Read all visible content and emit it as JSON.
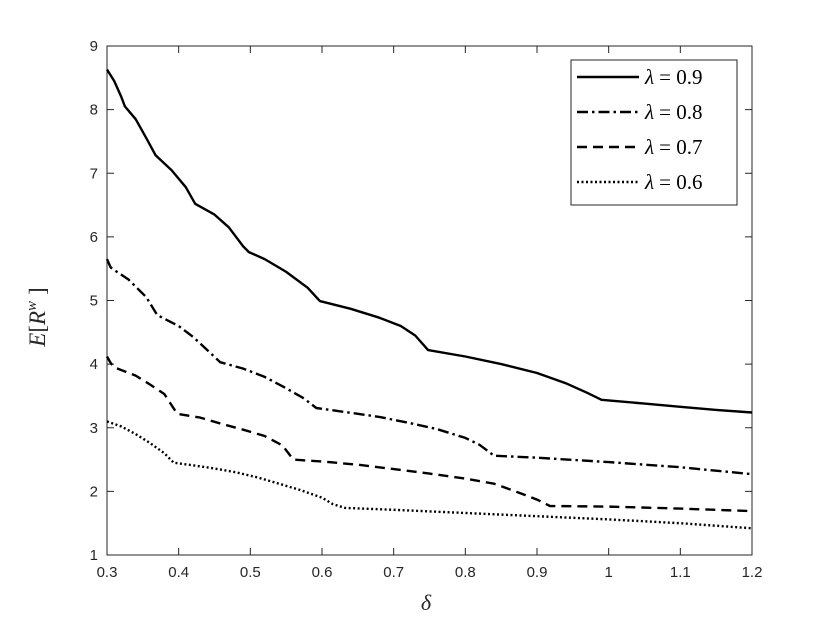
{
  "chart_data": {
    "type": "line",
    "xlabel": "δ",
    "ylabel_parts": {
      "a": "E",
      "b": "[",
      "c": "R",
      "d": "w",
      "e": "]"
    },
    "xlim": [
      0.3,
      1.2
    ],
    "ylim": [
      1,
      9
    ],
    "xticks": [
      "0.3",
      "0.4",
      "0.5",
      "0.6",
      "0.7",
      "0.8",
      "0.9",
      "1",
      "1.1",
      "1.2"
    ],
    "yticks": [
      "1",
      "2",
      "3",
      "4",
      "5",
      "6",
      "7",
      "8",
      "9"
    ],
    "grid": false,
    "legend_position": "top-right",
    "series": [
      {
        "name": "λ = 0.9",
        "legend_symbol": "λ",
        "legend_value": "= 0.9",
        "style": "solid",
        "color": "#000000",
        "x": [
          0.3,
          0.31,
          0.32,
          0.325,
          0.34,
          0.355,
          0.368,
          0.39,
          0.41,
          0.423,
          0.45,
          0.47,
          0.49,
          0.498,
          0.52,
          0.55,
          0.58,
          0.597,
          0.64,
          0.68,
          0.71,
          0.73,
          0.748,
          0.8,
          0.85,
          0.9,
          0.94,
          0.97,
          0.99,
          1.05,
          1.1,
          1.15,
          1.2
        ],
        "y": [
          8.63,
          8.45,
          8.2,
          8.05,
          7.85,
          7.55,
          7.28,
          7.05,
          6.78,
          6.52,
          6.35,
          6.15,
          5.85,
          5.76,
          5.65,
          5.45,
          5.2,
          4.99,
          4.87,
          4.73,
          4.6,
          4.45,
          4.22,
          4.12,
          4.0,
          3.86,
          3.7,
          3.55,
          3.44,
          3.38,
          3.33,
          3.28,
          3.24
        ]
      },
      {
        "name": "λ = 0.8",
        "legend_symbol": "λ",
        "legend_value": "= 0.8",
        "style": "dashdot",
        "color": "#000000",
        "x": [
          0.3,
          0.305,
          0.31,
          0.33,
          0.355,
          0.37,
          0.4,
          0.42,
          0.44,
          0.458,
          0.49,
          0.52,
          0.55,
          0.575,
          0.592,
          0.63,
          0.68,
          0.72,
          0.76,
          0.8,
          0.82,
          0.84,
          0.9,
          1.0,
          1.1,
          1.2
        ],
        "y": [
          5.65,
          5.52,
          5.48,
          5.33,
          5.05,
          4.77,
          4.6,
          4.43,
          4.22,
          4.03,
          3.93,
          3.8,
          3.62,
          3.46,
          3.31,
          3.25,
          3.17,
          3.08,
          2.98,
          2.84,
          2.73,
          2.56,
          2.53,
          2.46,
          2.38,
          2.27
        ]
      },
      {
        "name": "λ = 0.7",
        "legend_symbol": "λ",
        "legend_value": "= 0.7",
        "style": "dashed",
        "color": "#000000",
        "x": [
          0.3,
          0.305,
          0.31,
          0.34,
          0.36,
          0.38,
          0.398,
          0.43,
          0.46,
          0.49,
          0.52,
          0.545,
          0.56,
          0.6,
          0.65,
          0.7,
          0.75,
          0.8,
          0.84,
          0.87,
          0.9,
          0.918,
          1.0,
          1.1,
          1.2
        ],
        "y": [
          4.12,
          4.02,
          3.95,
          3.82,
          3.68,
          3.53,
          3.22,
          3.16,
          3.06,
          2.97,
          2.87,
          2.72,
          2.5,
          2.47,
          2.42,
          2.35,
          2.28,
          2.2,
          2.12,
          2.0,
          1.87,
          1.77,
          1.76,
          1.73,
          1.69
        ]
      },
      {
        "name": "λ = 0.6",
        "legend_symbol": "λ",
        "legend_value": "= 0.6",
        "style": "dotted",
        "color": "#000000",
        "x": [
          0.3,
          0.32,
          0.34,
          0.36,
          0.38,
          0.393,
          0.42,
          0.45,
          0.48,
          0.51,
          0.54,
          0.57,
          0.6,
          0.615,
          0.632,
          0.7,
          0.8,
          0.9,
          1.0,
          1.1,
          1.2
        ],
        "y": [
          3.1,
          3.02,
          2.9,
          2.76,
          2.6,
          2.45,
          2.41,
          2.36,
          2.3,
          2.22,
          2.12,
          2.02,
          1.9,
          1.8,
          1.74,
          1.71,
          1.66,
          1.61,
          1.56,
          1.5,
          1.42
        ]
      }
    ]
  }
}
